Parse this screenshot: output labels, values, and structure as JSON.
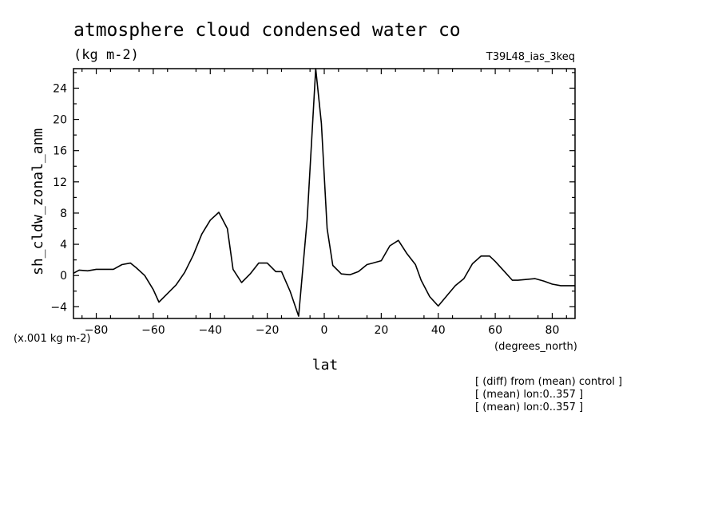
{
  "chart_data": {
    "type": "line",
    "title": "atmosphere cloud condensed water co",
    "units": "(kg m-2)",
    "experiment": "T39L48_ias_3keq",
    "ylabel": "sh_cldw_zonal_anm",
    "xlabel": "lat",
    "x_units": "(degrees_north)",
    "y_scale_note": "(x.001 kg m-2)",
    "notes": [
      "[ (diff) from (mean) control ]",
      "[ (mean) lon:0..357 ]",
      "[ (mean) lon:0..357 ]"
    ],
    "xlim": [
      -88,
      88
    ],
    "ylim": [
      -5.5,
      26.5
    ],
    "x_ticks": [
      -80,
      -60,
      -40,
      -20,
      0,
      20,
      40,
      60,
      80
    ],
    "y_ticks": [
      -4,
      0,
      4,
      8,
      12,
      16,
      20,
      24
    ],
    "series": [
      {
        "x": [
          -88,
          -86,
          -83,
          -80,
          -77,
          -74,
          -71,
          -68,
          -66,
          -63,
          -60,
          -58,
          -55,
          -52,
          -49,
          -46,
          -43,
          -40,
          -37,
          -34,
          -32,
          -29,
          -26,
          -23,
          -20,
          -17,
          -15,
          -12,
          -9,
          -6,
          -3,
          -1,
          1,
          3,
          6,
          9,
          12,
          15,
          17,
          20,
          23,
          26,
          29,
          32,
          34,
          37,
          40,
          43,
          46,
          49,
          52,
          55,
          58,
          60,
          63,
          66,
          68,
          71,
          74,
          77,
          80,
          83,
          86,
          88
        ],
        "y": [
          0.3,
          0.7,
          0.6,
          0.8,
          0.8,
          0.8,
          1.4,
          1.6,
          1.0,
          0.0,
          -1.8,
          -3.4,
          -2.3,
          -1.2,
          0.4,
          2.6,
          5.3,
          7.1,
          8.1,
          6.0,
          0.8,
          -0.9,
          0.2,
          1.6,
          1.6,
          0.5,
          0.5,
          -2.0,
          -5.2,
          7.2,
          26.5,
          19.5,
          6.0,
          1.3,
          0.2,
          0.1,
          0.5,
          1.4,
          1.6,
          1.9,
          3.8,
          4.5,
          2.8,
          1.4,
          -0.6,
          -2.7,
          -3.9,
          -2.6,
          -1.3,
          -0.4,
          1.5,
          2.5,
          2.5,
          1.8,
          0.6,
          -0.6,
          -0.6,
          -0.5,
          -0.4,
          -0.7,
          -1.1,
          -1.3,
          -1.3,
          -1.3
        ]
      }
    ]
  }
}
